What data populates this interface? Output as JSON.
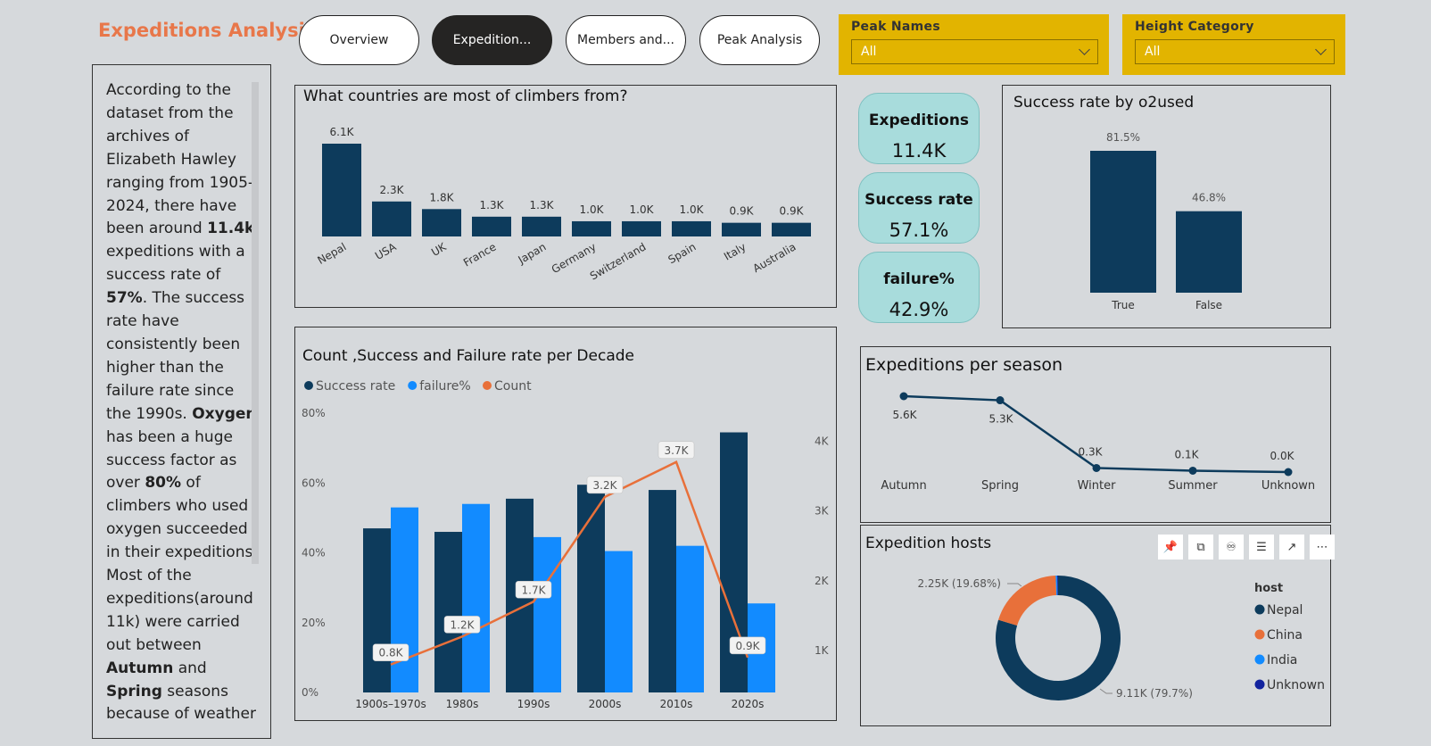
{
  "page": {
    "title": "Expeditions Analysis",
    "nav": [
      "Overview",
      "Expedition...",
      "Members and...",
      "Peak Analysis"
    ],
    "active_nav": 1
  },
  "slicers": [
    {
      "label": "Peak Names",
      "value": "All"
    },
    {
      "label": "Height Category",
      "value": "All"
    }
  ],
  "narrative": {
    "segments": [
      {
        "t": "According to the dataset from the archives of Elizabeth Hawley ranging from 1905-2024, there have been around "
      },
      {
        "t": "11.4k",
        "b": true
      },
      {
        "t": " expeditions with a success rate of "
      },
      {
        "t": "57%",
        "b": true
      },
      {
        "t": ". The success rate have consistently been higher than the failure rate since the 1990s. "
      },
      {
        "t": "Oxygen",
        "b": true
      },
      {
        "t": " has been a huge success factor as over "
      },
      {
        "t": "80%",
        "b": true
      },
      {
        "t": " of climbers who used oxygen succeeded in their expeditions. Most of the expeditions(around 11k) were carried out between "
      },
      {
        "t": "Autumn",
        "b": true
      },
      {
        "t": " and "
      },
      {
        "t": "Spring",
        "b": true
      },
      {
        "t": " seasons because of weather"
      }
    ]
  },
  "kpis": [
    {
      "label": "Expeditions",
      "value": "11.4K"
    },
    {
      "label": "Success rate",
      "value": "57.1%"
    },
    {
      "label": "failure%",
      "value": "42.9%"
    }
  ],
  "colors": {
    "navy": "#0d3b5c",
    "blue": "#128bff",
    "orange": "#e8703a",
    "dark_blue_unknown": "#12239e",
    "kpi_bg": "#a8dcdc",
    "slicer_bg": "#e2b400",
    "title": "#e8774a"
  },
  "toolbar_icons": [
    "pin-icon",
    "copy-icon",
    "bell-icon",
    "filter-icon",
    "focus-icon",
    "more-icon"
  ],
  "chart_data": [
    {
      "type": "bar",
      "title": "What countries are most of climbers from?",
      "categories": [
        "Nepal",
        "USA",
        "UK",
        "France",
        "Japan",
        "Germany",
        "Switzerland",
        "Spain",
        "Italy",
        "Australia"
      ],
      "values": [
        6100,
        2300,
        1800,
        1300,
        1300,
        1000,
        1000,
        1000,
        900,
        900
      ],
      "labels": [
        "6.1K",
        "2.3K",
        "1.8K",
        "1.3K",
        "1.3K",
        "1.0K",
        "1.0K",
        "1.0K",
        "0.9K",
        "0.9K"
      ],
      "ylim": [
        0,
        6100
      ],
      "grid": false,
      "color": "#0d3b5c"
    },
    {
      "type": "bar",
      "title": "Success rate by o2used",
      "categories": [
        "True",
        "False"
      ],
      "values": [
        81.5,
        46.8
      ],
      "labels": [
        "81.5%",
        "46.8%"
      ],
      "ylim": [
        0,
        81.5
      ],
      "grid": false,
      "color": "#0d3b5c"
    },
    {
      "type": "bar",
      "title": "Count ,Success and Failure rate per Decade",
      "categories": [
        "1900s–1970s",
        "1980s",
        "1990s",
        "2000s",
        "2010s",
        "2020s"
      ],
      "series": [
        {
          "name": "Success rate",
          "values": [
            47,
            46,
            55.5,
            59.5,
            58,
            74.5
          ],
          "color": "#0d3b5c"
        },
        {
          "name": "failure%",
          "values": [
            53,
            54,
            44.5,
            40.5,
            42,
            25.5
          ],
          "color": "#128bff"
        },
        {
          "name": "Count",
          "values": [
            800,
            1200,
            1700,
            3200,
            3700,
            900
          ],
          "labels": [
            "0.8K",
            "1.2K",
            "1.7K",
            "3.2K",
            "3.7K",
            "0.9K"
          ],
          "color": "#e8703a",
          "type": "line",
          "axis": "right"
        }
      ],
      "y_ticks": [
        "0%",
        "20%",
        "40%",
        "60%",
        "80%"
      ],
      "y2_ticks": [
        "1K",
        "2K",
        "3K",
        "4K"
      ],
      "ylim": [
        0,
        80
      ],
      "y2lim": [
        400,
        4400
      ],
      "legend": "top-left",
      "grid": false
    },
    {
      "type": "line",
      "title": "Expeditions per season",
      "categories": [
        "Autumn",
        "Spring",
        "Winter",
        "Summer",
        "Unknown"
      ],
      "values": [
        5600,
        5300,
        300,
        100,
        0
      ],
      "labels": [
        "5.6K",
        "5.3K",
        "0.3K",
        "0.1K",
        "0.0K"
      ],
      "ylim": [
        0,
        5600
      ],
      "grid": false,
      "color": "#0d3b5c"
    },
    {
      "type": "pie",
      "title": "Expedition hosts",
      "legend_title": "host",
      "legend": "right",
      "slices": [
        {
          "name": "Nepal",
          "value": 79.7,
          "color": "#0d3b5c",
          "label": "9.11K (79.7%)"
        },
        {
          "name": "China",
          "value": 19.68,
          "color": "#e8703a",
          "label": "2.25K (19.68%)"
        },
        {
          "name": "India",
          "value": 0.4,
          "color": "#128bff"
        },
        {
          "name": "Unknown",
          "value": 0.22,
          "color": "#12239e"
        }
      ]
    }
  ]
}
